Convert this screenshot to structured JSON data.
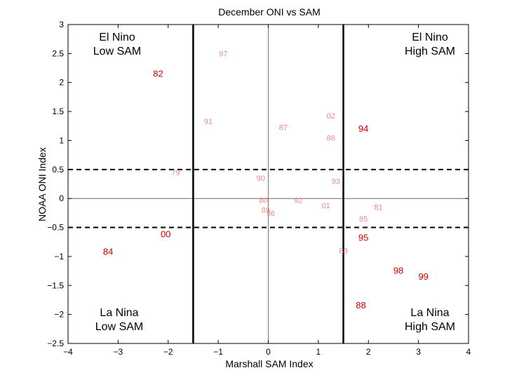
{
  "chart_data": {
    "type": "scatter",
    "title": "December ONI vs SAM",
    "xlabel": "Marshall SAM Index",
    "ylabel": "NOAA ONI Index",
    "xlim": [
      -4,
      4
    ],
    "ylim": [
      -2.5,
      3
    ],
    "xticks": [
      -4,
      -3,
      -2,
      -1,
      0,
      1,
      2,
      3,
      4
    ],
    "yticks": [
      -2.5,
      -2,
      -1.5,
      -1,
      -0.5,
      0,
      0.5,
      1,
      1.5,
      2,
      2.5,
      3
    ],
    "xtick_labels": [
      "−4",
      "−3",
      "−2",
      "−1",
      "0",
      "1",
      "2",
      "3",
      "4"
    ],
    "ytick_labels": [
      "−2.5",
      "−2",
      "−1.5",
      "−1",
      "−0.5",
      "0",
      "0.5",
      "1",
      "1.5",
      "2",
      "2.5",
      "3"
    ],
    "grid": false,
    "reference_lines": {
      "vertical_solid_thick": [
        -1.5,
        1.5
      ],
      "horizontal_dashed": [
        0.5,
        -0.5
      ],
      "vertical_thin": [
        0
      ],
      "horizontal_thin": [
        0
      ]
    },
    "colors": {
      "strong": "#cc0000",
      "weak": "#ee8a8a",
      "axis": "#000000",
      "thin_line": "#555555"
    },
    "points": [
      {
        "label": "97",
        "x": -0.9,
        "y": 2.5,
        "emphasis": false
      },
      {
        "label": "82",
        "x": -2.2,
        "y": 2.15,
        "emphasis": true
      },
      {
        "label": "91",
        "x": -1.2,
        "y": 1.33,
        "emphasis": false
      },
      {
        "label": "02",
        "x": 1.25,
        "y": 1.43,
        "emphasis": false
      },
      {
        "label": "87",
        "x": 0.3,
        "y": 1.23,
        "emphasis": false
      },
      {
        "label": "94",
        "x": 1.9,
        "y": 1.2,
        "emphasis": true
      },
      {
        "label": "86",
        "x": 1.25,
        "y": 1.05,
        "emphasis": false
      },
      {
        "label": "79",
        "x": -1.85,
        "y": 0.45,
        "emphasis": false
      },
      {
        "label": "90",
        "x": -0.15,
        "y": 0.35,
        "emphasis": false
      },
      {
        "label": "93",
        "x": 1.35,
        "y": 0.3,
        "emphasis": false
      },
      {
        "label": "80",
        "x": -0.1,
        "y": -0.03,
        "emphasis": false
      },
      {
        "label": "92",
        "x": 0.6,
        "y": -0.03,
        "emphasis": false
      },
      {
        "label": "01",
        "x": 1.15,
        "y": -0.12,
        "emphasis": false
      },
      {
        "label": "81",
        "x": 2.2,
        "y": -0.15,
        "emphasis": false
      },
      {
        "label": "89",
        "x": -0.05,
        "y": -0.2,
        "emphasis": false
      },
      {
        "label": "96",
        "x": 0.05,
        "y": -0.25,
        "emphasis": false
      },
      {
        "label": "85",
        "x": 1.9,
        "y": -0.35,
        "emphasis": false
      },
      {
        "label": "00",
        "x": -2.05,
        "y": -0.62,
        "emphasis": true
      },
      {
        "label": "95",
        "x": 1.9,
        "y": -0.68,
        "emphasis": true
      },
      {
        "label": "84",
        "x": -3.2,
        "y": -0.92,
        "emphasis": true
      },
      {
        "label": "83",
        "x": 1.5,
        "y": -0.9,
        "emphasis": false
      },
      {
        "label": "98",
        "x": 2.6,
        "y": -1.25,
        "emphasis": true
      },
      {
        "label": "99",
        "x": 3.1,
        "y": -1.35,
        "emphasis": true
      },
      {
        "label": "88",
        "x": 1.85,
        "y": -1.85,
        "emphasis": true
      }
    ],
    "quadrant_labels": [
      {
        "name": "quadrant-label-el-nino-low-sam",
        "lines": [
          "El Nino",
          "Low SAM"
        ],
        "corner": "top-left"
      },
      {
        "name": "quadrant-label-el-nino-high-sam",
        "lines": [
          "El Nino",
          "High SAM"
        ],
        "corner": "top-right"
      },
      {
        "name": "quadrant-label-la-nina-low-sam",
        "lines": [
          "La Nina",
          "Low SAM"
        ],
        "corner": "bottom-left"
      },
      {
        "name": "quadrant-label-la-nina-high-sam",
        "lines": [
          "La Nina",
          "High SAM"
        ],
        "corner": "bottom-right"
      }
    ]
  }
}
